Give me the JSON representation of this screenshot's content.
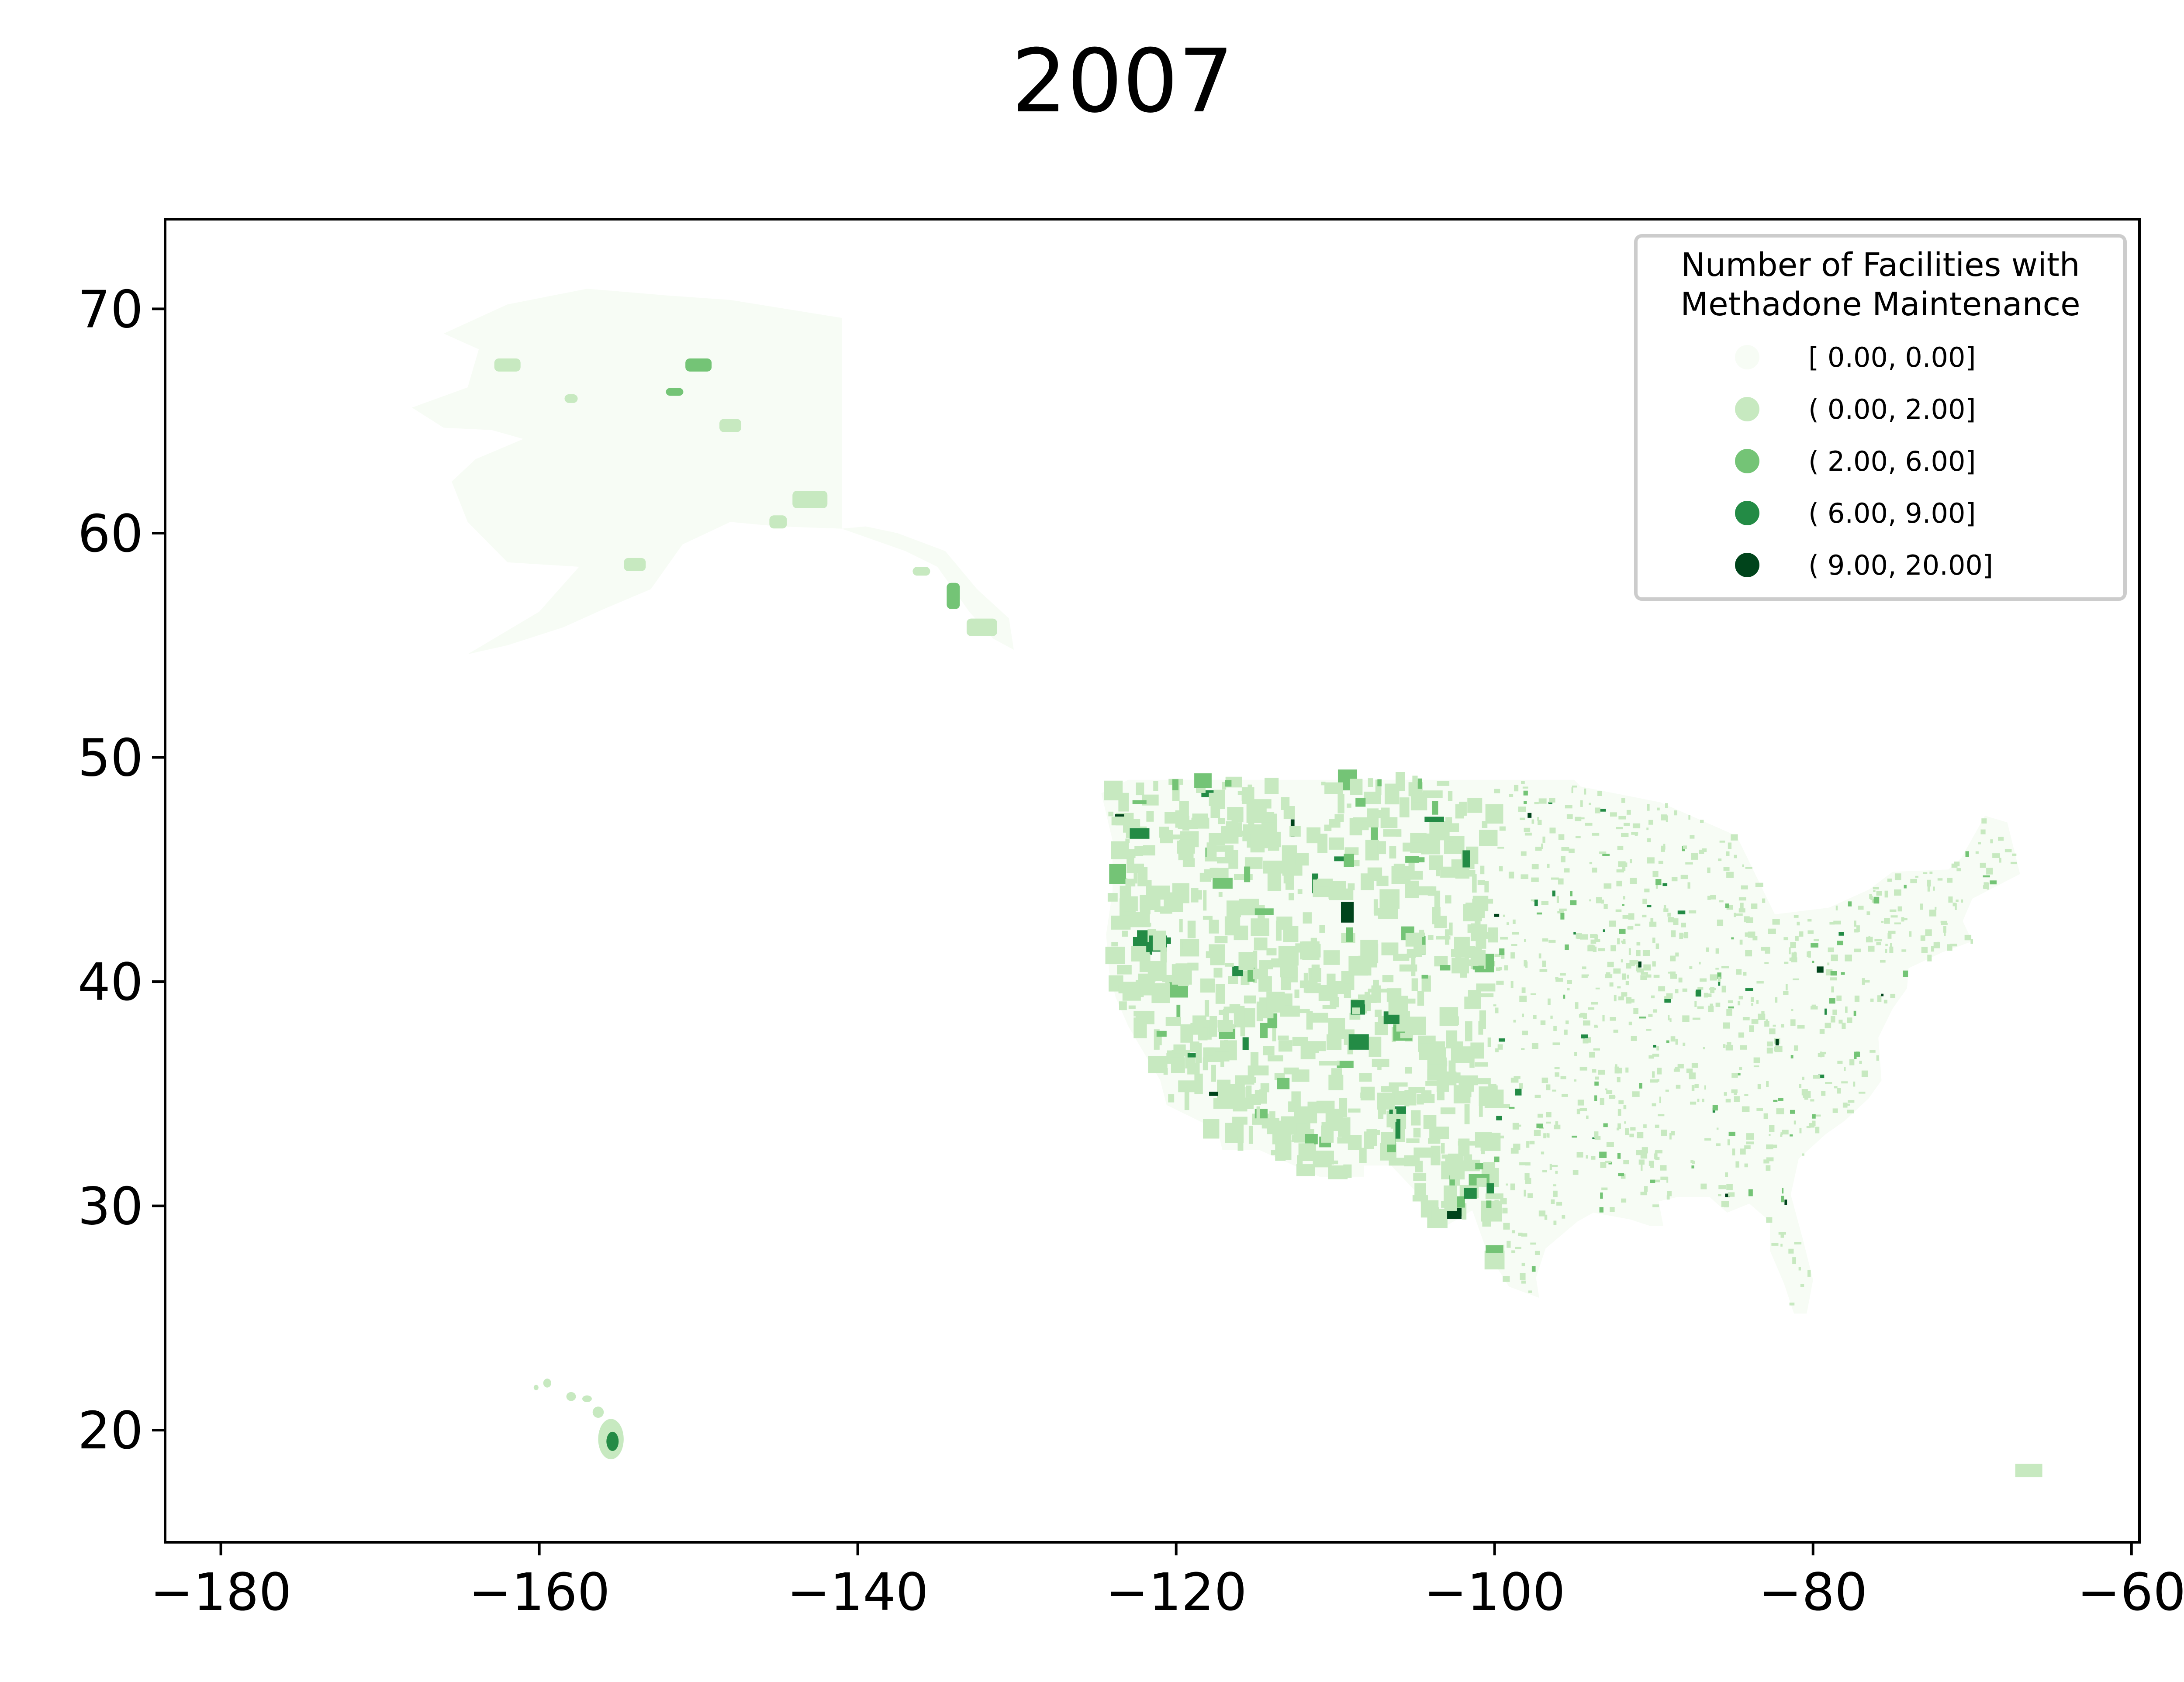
{
  "chart_data": {
    "type": "map",
    "title": "2007",
    "xlim": [
      -183.5,
      -59.5
    ],
    "ylim": [
      15,
      74
    ],
    "xticks": [
      -180,
      -160,
      -140,
      -120,
      -100,
      -80,
      -60
    ],
    "yticks": [
      20,
      30,
      40,
      50,
      60,
      70
    ],
    "xtick_labels": [
      "−180",
      "−160",
      "−140",
      "−120",
      "−100",
      "−80",
      "−60"
    ],
    "ytick_labels": [
      "20",
      "30",
      "40",
      "50",
      "60",
      "70"
    ],
    "legend": {
      "title_lines": [
        "Number of Facilities with",
        "Methadone Maintenance"
      ],
      "placement": "top-right",
      "items": [
        {
          "label": "[ 0.00,  0.00]",
          "color": "#f7fcf5"
        },
        {
          "label": "( 0.00,  2.00]",
          "color": "#c7e9c0"
        },
        {
          "label": "( 2.00,  6.00]",
          "color": "#74c476"
        },
        {
          "label": "( 6.00,  9.00]",
          "color": "#238b45"
        },
        {
          "label": "( 9.00, 20.00]",
          "color": "#00441b"
        }
      ]
    },
    "colormap": "Greens",
    "grid": false
  }
}
